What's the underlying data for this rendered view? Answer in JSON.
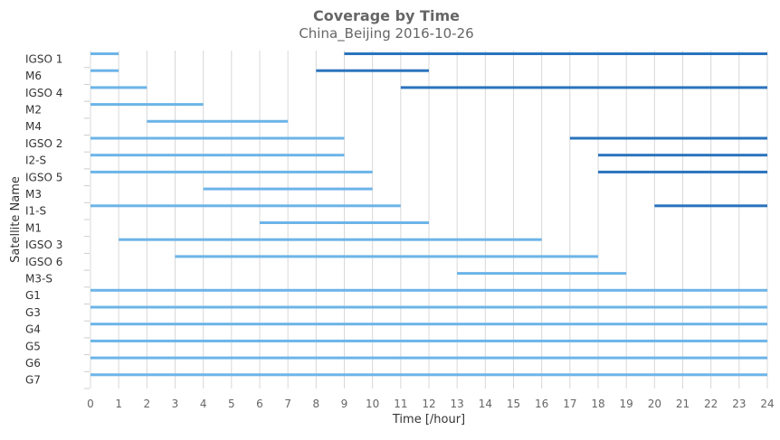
{
  "chart_data": {
    "type": "bar",
    "title": "Coverage by Time",
    "subtitle": "China_Beijing 2016-10-26",
    "xlabel": "Time [/hour]",
    "ylabel": "Satellite Name",
    "xlim": [
      0,
      24
    ],
    "xticks": [
      "0",
      "1",
      "2",
      "3",
      "4",
      "5",
      "6",
      "7",
      "8",
      "9",
      "10",
      "11",
      "12",
      "13",
      "14",
      "15",
      "16",
      "17",
      "18",
      "19",
      "20",
      "21",
      "22",
      "23",
      "24"
    ],
    "grid": true,
    "colors": {
      "light": "#6cb4e8",
      "dark": "#2a73bd"
    },
    "categories": [
      "IGSO 1",
      "M6",
      "IGSO 4",
      "M2",
      "M4",
      "IGSO 2",
      "I2-S",
      "IGSO 5",
      "M3",
      "I1-S",
      "M1",
      "IGSO 3",
      "IGSO 6",
      "M3-S",
      "G1",
      "G3",
      "G4",
      "G5",
      "G6",
      "G7"
    ],
    "intervals": [
      {
        "category": "IGSO 1",
        "start": 0,
        "end": 1,
        "shade": "light",
        "slot": 0
      },
      {
        "category": "IGSO 1",
        "start": 9,
        "end": 24,
        "shade": "dark",
        "slot": 0
      },
      {
        "category": "M6",
        "start": 0,
        "end": 1,
        "shade": "light",
        "slot": 0
      },
      {
        "category": "M6",
        "start": 8,
        "end": 12,
        "shade": "dark",
        "slot": 0
      },
      {
        "category": "IGSO 4",
        "start": 0,
        "end": 2,
        "shade": "light",
        "slot": 0
      },
      {
        "category": "IGSO 4",
        "start": 11,
        "end": 24,
        "shade": "dark",
        "slot": 0
      },
      {
        "category": "M2",
        "start": 0,
        "end": 4,
        "shade": "light",
        "slot": 0
      },
      {
        "category": "M4",
        "start": 2,
        "end": 7,
        "shade": "light",
        "slot": 0
      },
      {
        "category": "IGSO 2",
        "start": 0,
        "end": 9,
        "shade": "light",
        "slot": 0
      },
      {
        "category": "IGSO 2",
        "start": 17,
        "end": 24,
        "shade": "dark",
        "slot": 0
      },
      {
        "category": "I2-S",
        "start": 0,
        "end": 9,
        "shade": "light",
        "slot": 0
      },
      {
        "category": "I2-S",
        "start": 18,
        "end": 24,
        "shade": "dark",
        "slot": 0
      },
      {
        "category": "IGSO 5",
        "start": 0,
        "end": 10,
        "shade": "light",
        "slot": 0
      },
      {
        "category": "IGSO 5",
        "start": 18,
        "end": 24,
        "shade": "dark",
        "slot": 0
      },
      {
        "category": "M3",
        "start": 4,
        "end": 10,
        "shade": "light",
        "slot": 0
      },
      {
        "category": "I1-S",
        "start": 0,
        "end": 11,
        "shade": "light",
        "slot": 0
      },
      {
        "category": "I1-S",
        "start": 20,
        "end": 24,
        "shade": "dark",
        "slot": 0
      },
      {
        "category": "M1",
        "start": 6,
        "end": 12,
        "shade": "light",
        "slot": 0
      },
      {
        "category": "IGSO 3",
        "start": 1,
        "end": 16,
        "shade": "light",
        "slot": 0
      },
      {
        "category": "IGSO 6",
        "start": 3,
        "end": 18,
        "shade": "light",
        "slot": 0
      },
      {
        "category": "M3-S",
        "start": 13,
        "end": 19,
        "shade": "light",
        "slot": 0
      },
      {
        "category": "G1",
        "start": 0,
        "end": 24,
        "shade": "light",
        "slot": 0
      },
      {
        "category": "G3",
        "start": 0,
        "end": 24,
        "shade": "light",
        "slot": 0
      },
      {
        "category": "G4",
        "start": 0,
        "end": 24,
        "shade": "light",
        "slot": 0
      },
      {
        "category": "G5",
        "start": 0,
        "end": 24,
        "shade": "light",
        "slot": 0
      },
      {
        "category": "G6",
        "start": 0,
        "end": 24,
        "shade": "light",
        "slot": 0
      },
      {
        "category": "G7",
        "start": 0,
        "end": 24,
        "shade": "light",
        "slot": 0
      }
    ]
  }
}
